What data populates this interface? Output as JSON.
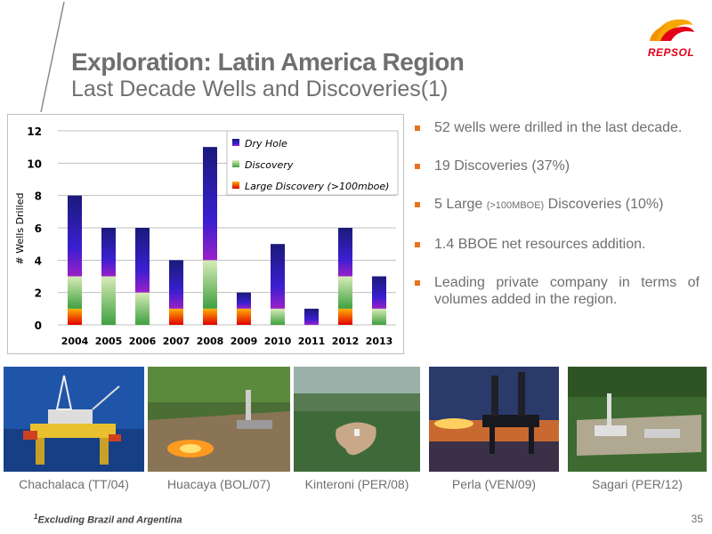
{
  "header": {
    "title": "Exploration: Latin America Region",
    "subtitle": "Last Decade Wells and Discoveries(1)",
    "logo_text": "REPSOL"
  },
  "chart_data": {
    "type": "bar",
    "stacked": true,
    "categories": [
      "2004",
      "2005",
      "2006",
      "2007",
      "2008",
      "2009",
      "2010",
      "2011",
      "2012",
      "2013"
    ],
    "series": [
      {
        "name": "Large Discovery (>100mboe)",
        "color": "#ff6a00",
        "values": [
          1,
          0,
          0,
          1,
          1,
          1,
          0,
          0,
          1,
          0
        ]
      },
      {
        "name": "Discovery",
        "color": "#8fc36a",
        "values": [
          2,
          3,
          2,
          0,
          3,
          0,
          1,
          0,
          2,
          1
        ]
      },
      {
        "name": "Dry Hole",
        "color": "#2f1fb0",
        "values": [
          5,
          3,
          4,
          3,
          7,
          1,
          4,
          1,
          3,
          2
        ]
      }
    ],
    "ylabel": "# Wells Drilled",
    "ylim": [
      0,
      12
    ],
    "yticks": [
      0,
      2,
      4,
      6,
      8,
      10,
      12
    ],
    "grid": true,
    "legend_position": "top-right"
  },
  "bullets": [
    {
      "text": "52 wells were drilled in the last decade."
    },
    {
      "text": "19 Discoveries (37%)"
    },
    {
      "pre": "5 Large ",
      "small": "(>100MBOE)",
      "post": " Discoveries (10%)"
    },
    {
      "text": "1.4 BBOE net resources addition."
    },
    {
      "text": "Leading private company in terms of volumes added in the region."
    }
  ],
  "photos": [
    {
      "caption": "Chachalaca (TT/04)"
    },
    {
      "caption": "Huacaya (BOL/07)"
    },
    {
      "caption": "Kinteroni (PER/08)"
    },
    {
      "caption": "Perla (VEN/09)"
    },
    {
      "caption": "Sagari (PER/12)"
    }
  ],
  "footer": {
    "footnote_mark": "1",
    "footnote": "Excluding Brazil and Argentina",
    "page_number": "35"
  }
}
